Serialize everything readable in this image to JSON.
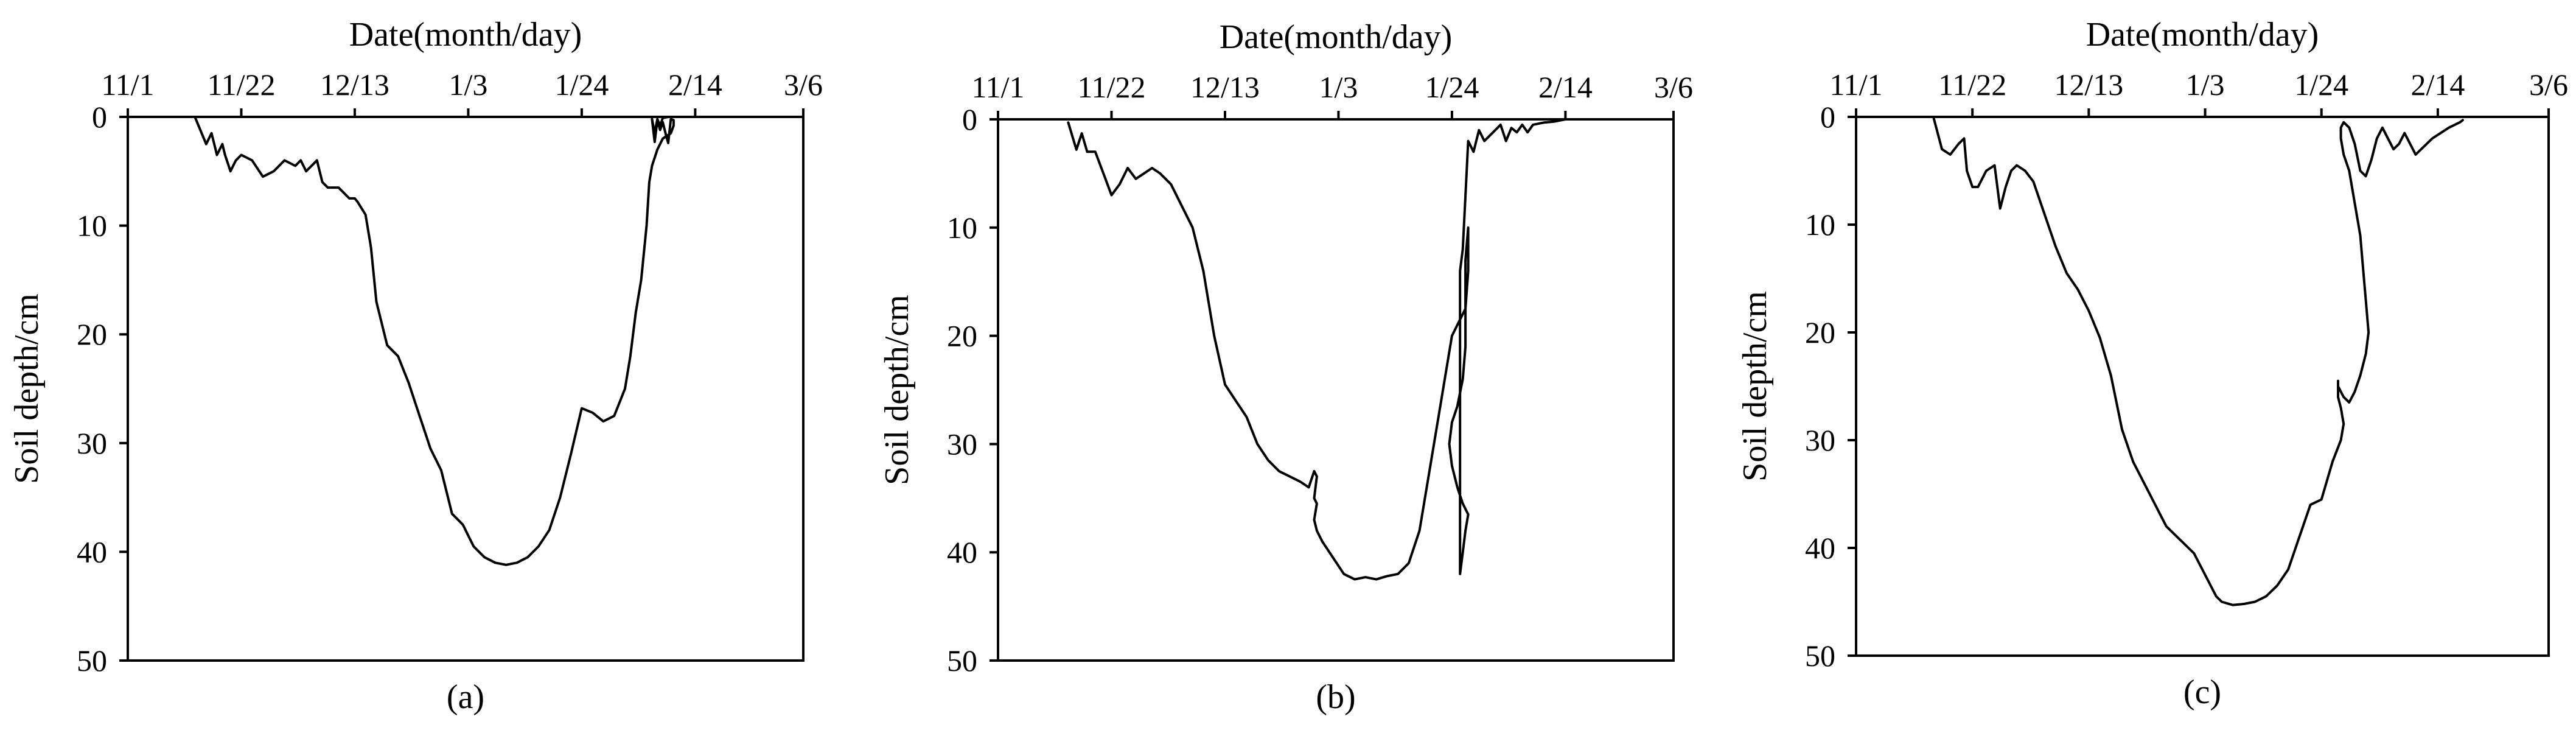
{
  "chart_data": [
    {
      "type": "line",
      "panel_label": "(a)",
      "xlabel": "Date(month/day)",
      "ylabel": "Soil depth/cm",
      "x_ticks": [
        "11/1",
        "11/22",
        "12/13",
        "1/3",
        "1/24",
        "2/14",
        "3/6"
      ],
      "x_tick_days": [
        0,
        21,
        42,
        63,
        84,
        105,
        125
      ],
      "xlim": [
        0,
        125
      ],
      "y_ticks": [
        0,
        10,
        20,
        30,
        40,
        50
      ],
      "ylim": [
        0,
        50
      ],
      "y_inverted": true,
      "x_axis_position": "top",
      "series": [
        {
          "x": [
            12.5,
            14.5,
            15.5,
            16.5,
            17.5,
            18,
            19,
            20,
            21,
            23,
            25,
            27,
            29,
            31,
            32,
            33,
            34,
            35,
            36,
            37,
            38,
            39,
            41,
            42,
            42.5,
            44,
            45,
            46,
            48,
            50,
            52,
            53,
            54,
            55,
            56,
            58,
            60,
            61,
            62,
            63,
            64,
            65,
            66,
            68,
            70,
            72,
            74,
            76,
            78,
            80,
            82,
            84,
            86,
            88,
            90,
            92,
            93,
            94,
            95,
            96,
            96.5,
            97,
            98,
            99,
            100.5,
            101,
            101,
            100.5,
            100,
            99.5,
            99,
            98.5,
            98,
            97.5,
            97,
            97.5,
            98,
            98.5,
            99,
            100,
            101,
            102,
            103,
            104,
            105,
            103
          ],
          "y": [
            0.1,
            2.5,
            1.5,
            3.5,
            2.5,
            3.5,
            5,
            4,
            3.5,
            4,
            5.5,
            5,
            4,
            4.5,
            4,
            5,
            4.5,
            4,
            6,
            6.5,
            6.5,
            6.5,
            7.5,
            7.5,
            7.8,
            9,
            12,
            17,
            21,
            22,
            24.5,
            26,
            27.5,
            29,
            30.5,
            32.5,
            36.5,
            37,
            37.5,
            38.5,
            39.5,
            40,
            40.5,
            41,
            41.2,
            41,
            40.5,
            39.5,
            38,
            35,
            31,
            26.8,
            27.2,
            28,
            27.5,
            25,
            22,
            18,
            15,
            10,
            6,
            4.5,
            3,
            2,
            1.5,
            0.8,
            0.3,
            0.2,
            2.4,
            1.5,
            0.5,
            1.2,
            0.3,
            2.3,
            0.2,
            1.5,
            0.2,
            0.8,
            0.1,
            0,
            0,
            0,
            0,
            0,
            0,
            0
          ]
        }
      ]
    },
    {
      "type": "line",
      "panel_label": "(b)",
      "xlabel": "Date(month/day)",
      "ylabel": "Soil depth/cm",
      "x_ticks": [
        "11/1",
        "11/22",
        "12/13",
        "1/3",
        "1/24",
        "2/14",
        "3/6"
      ],
      "x_tick_days": [
        0,
        21,
        42,
        63,
        84,
        105,
        125
      ],
      "xlim": [
        0,
        125
      ],
      "y_ticks": [
        0,
        10,
        20,
        30,
        40,
        50
      ],
      "ylim": [
        0,
        50
      ],
      "y_inverted": true,
      "x_axis_position": "top",
      "series": [
        {
          "x": [
            13,
            14.5,
            15.5,
            16.5,
            18,
            19.5,
            21,
            22.5,
            24,
            25.5,
            27,
            28.5,
            30,
            32,
            34,
            36,
            38,
            40,
            42,
            44,
            46,
            48,
            50,
            52,
            54,
            56,
            57.5,
            58.5,
            59,
            58.5,
            59,
            58.5,
            59,
            60,
            62,
            64,
            66,
            68,
            70,
            72,
            74,
            76,
            78,
            80,
            82,
            84,
            85.5,
            86.5,
            87,
            87,
            86.5,
            86.5,
            86.5,
            86,
            85,
            84,
            83.5,
            84,
            85,
            86,
            87,
            86.5,
            86,
            85.5,
            85.5,
            85.5,
            86,
            87,
            88,
            89,
            90,
            91,
            92,
            93,
            94,
            95,
            96,
            97,
            98,
            99,
            101,
            103,
            105
          ],
          "y": [
            0.3,
            2.8,
            1.3,
            3,
            3,
            5,
            7,
            6,
            4.5,
            5.5,
            5,
            4.5,
            5,
            6,
            8,
            10,
            14,
            20,
            24.5,
            26,
            27.5,
            30,
            31.5,
            32.5,
            33,
            33.5,
            34,
            32.5,
            33,
            35,
            35.5,
            37,
            38,
            39,
            40.5,
            42,
            42.5,
            42.3,
            42.5,
            42.2,
            42,
            41,
            38,
            32,
            26,
            20,
            18.5,
            17.5,
            14,
            10,
            13,
            15,
            21,
            24,
            26.5,
            28,
            30,
            32,
            34,
            35.5,
            36.5,
            38,
            40,
            42,
            20,
            14,
            12,
            2,
            3,
            1,
            2,
            1.5,
            1,
            0.5,
            2,
            0.8,
            1.2,
            0.5,
            1.2,
            0.5,
            0.3,
            0.2,
            0
          ]
        }
      ]
    },
    {
      "type": "line",
      "panel_label": "(c)",
      "xlabel": "Date(month/day)",
      "ylabel": "Soil depth/cm",
      "x_ticks": [
        "11/1",
        "11/22",
        "12/13",
        "1/3",
        "1/24",
        "2/14",
        "3/6"
      ],
      "x_tick_days": [
        0,
        21,
        42,
        63,
        84,
        105,
        125
      ],
      "xlim": [
        0,
        125
      ],
      "y_ticks": [
        0,
        10,
        20,
        30,
        40,
        50
      ],
      "ylim": [
        0,
        50
      ],
      "y_inverted": true,
      "x_axis_position": "top",
      "series": [
        {
          "x": [
            14,
            15.5,
            17,
            18.5,
            19.5,
            20,
            21,
            22,
            23.5,
            25,
            26,
            27,
            28,
            29,
            30.5,
            32,
            34,
            36,
            38,
            40,
            42,
            44,
            46,
            48,
            50,
            52,
            53,
            54,
            55,
            56,
            58,
            60,
            61,
            62,
            63,
            64,
            65,
            66,
            68,
            70,
            72,
            74,
            76,
            78,
            80,
            82,
            84,
            86,
            87.5,
            88,
            87.5,
            87,
            87,
            87,
            87,
            88,
            89,
            90,
            91,
            92,
            92.5,
            92,
            91.5,
            91,
            90,
            89,
            88,
            87.5,
            87.5,
            88,
            89,
            90,
            91,
            92,
            93,
            94,
            95,
            96,
            97,
            98,
            99,
            100,
            101,
            103,
            104,
            105.5,
            107,
            109,
            109.5
          ],
          "y": [
            0.1,
            3,
            3.5,
            2.5,
            2,
            5,
            6.5,
            6.5,
            5,
            4.5,
            8.5,
            6.5,
            5,
            4.5,
            5,
            6,
            9,
            12,
            14.5,
            16,
            18,
            20.5,
            24,
            29,
            32,
            34,
            35,
            36,
            37,
            38,
            39,
            40,
            40.5,
            41.5,
            42.5,
            43.5,
            44.5,
            45,
            45.3,
            45.2,
            45,
            44.5,
            43.5,
            42,
            39,
            36,
            35.5,
            32,
            30,
            28.5,
            27,
            26,
            25,
            24.5,
            25,
            26,
            26.5,
            25.5,
            24,
            22,
            20,
            17,
            14,
            11,
            8,
            5,
            3.5,
            2,
            1,
            0.5,
            1,
            2.5,
            5,
            5.5,
            4,
            2,
            1,
            2,
            3,
            2.5,
            1.5,
            2.5,
            3.5,
            2.5,
            2,
            1.5,
            1,
            0.5,
            0.3
          ]
        }
      ]
    }
  ]
}
